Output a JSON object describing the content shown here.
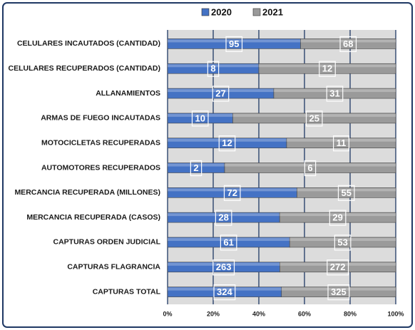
{
  "chart_data": {
    "type": "bar",
    "orientation": "horizontal",
    "stacking": "percent",
    "categories": [
      "CELULARES INCAUTADOS (CANTIDAD)",
      "CELULARES RECUPERADOS (CANTIDAD)",
      "ALLANAMIENTOS",
      "ARMAS DE FUEGO INCAUTADAS",
      "MOTOCICLETAS RECUPERADAS",
      "AUTOMOTORES RECUPERADOS",
      "MERCANCIA RECUPERADA (MILLONES)",
      "MERCANCIA RECUPERADA (CASOS)",
      "CAPTURAS ORDEN JUDICIAL",
      "CAPTURAS FLAGRANCIA",
      "CAPTURAS TOTAL"
    ],
    "series": [
      {
        "name": "2020",
        "color": "#4472c4",
        "values": [
          95,
          8,
          27,
          10,
          12,
          2,
          72,
          28,
          61,
          263,
          324
        ]
      },
      {
        "name": "2021",
        "color": "#9a9a9a",
        "values": [
          68,
          12,
          31,
          25,
          11,
          6,
          55,
          29,
          53,
          272,
          325
        ]
      }
    ],
    "xlim": [
      0,
      100
    ],
    "xticks": [
      {
        "value": 0,
        "label": "0%"
      },
      {
        "value": 20,
        "label": "20%"
      },
      {
        "value": 40,
        "label": "40%"
      },
      {
        "value": 60,
        "label": "60%"
      },
      {
        "value": 80,
        "label": "80%"
      },
      {
        "value": 100,
        "label": "100%"
      }
    ],
    "grid": true,
    "legend": "top"
  }
}
